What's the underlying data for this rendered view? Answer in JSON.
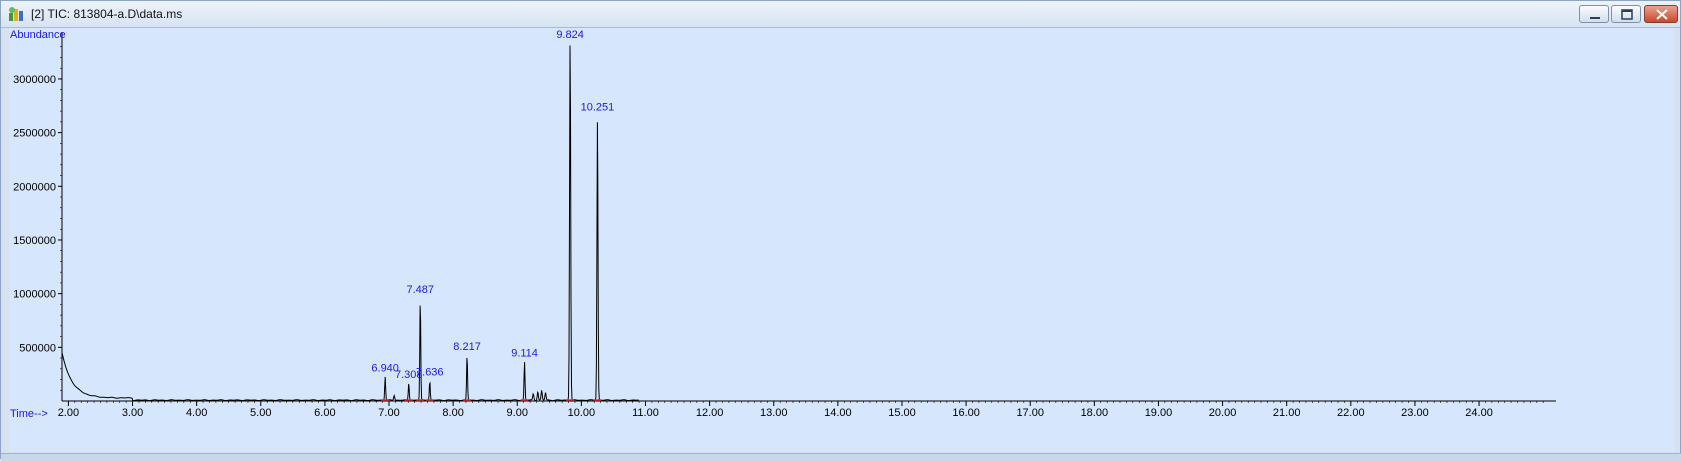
{
  "window": {
    "title": "[2] TIC: 813804-a.D\\data.ms",
    "controls": {
      "minimize": "minimize-icon",
      "maximize": "maximize-icon",
      "close": "close-icon"
    },
    "colors": {
      "plot_background": "#d6e6fc",
      "trace": "#000000",
      "label": "#1a1ae6",
      "baseline_marker": "#e03030"
    }
  },
  "chart_data": {
    "type": "line",
    "ylabel": "Abundance",
    "xlabel": "Time-->",
    "xlim": [
      1.9,
      25.2
    ],
    "ylim": [
      0,
      3400000
    ],
    "x_ticks": [
      "2.00",
      "3.00",
      "4.00",
      "5.00",
      "6.00",
      "7.00",
      "8.00",
      "9.00",
      "10.00",
      "11.00",
      "12.00",
      "13.00",
      "14.00",
      "15.00",
      "16.00",
      "17.00",
      "18.00",
      "19.00",
      "20.00",
      "21.00",
      "22.00",
      "23.00",
      "24.00"
    ],
    "y_ticks": [
      "500000",
      "1000000",
      "1500000",
      "2000000",
      "2500000",
      "3000000"
    ],
    "grid": false,
    "peaks": [
      {
        "rt": 6.94,
        "label": "6.940",
        "height": 220000
      },
      {
        "rt": 7.308,
        "label": "7.308",
        "height": 160000
      },
      {
        "rt": 7.487,
        "label": "7.487",
        "height": 950000
      },
      {
        "rt": 7.636,
        "label": "7.636",
        "height": 180000
      },
      {
        "rt": 8.217,
        "label": "8.217",
        "height": 420000
      },
      {
        "rt": 9.114,
        "label": "9.114",
        "height": 360000
      },
      {
        "rt": 9.824,
        "label": "9.824",
        "height": 3400000
      },
      {
        "rt": 10.251,
        "label": "10.251",
        "height": 2650000
      }
    ],
    "minor_peaks": [
      {
        "rt": 7.08,
        "height": 45000
      },
      {
        "rt": 9.25,
        "height": 60000
      },
      {
        "rt": 9.32,
        "height": 80000
      },
      {
        "rt": 9.38,
        "height": 90000
      },
      {
        "rt": 9.44,
        "height": 70000
      }
    ],
    "initial_tail": {
      "start": 1.9,
      "start_height": 420000,
      "end": 3.0,
      "end_height": 20000
    }
  }
}
